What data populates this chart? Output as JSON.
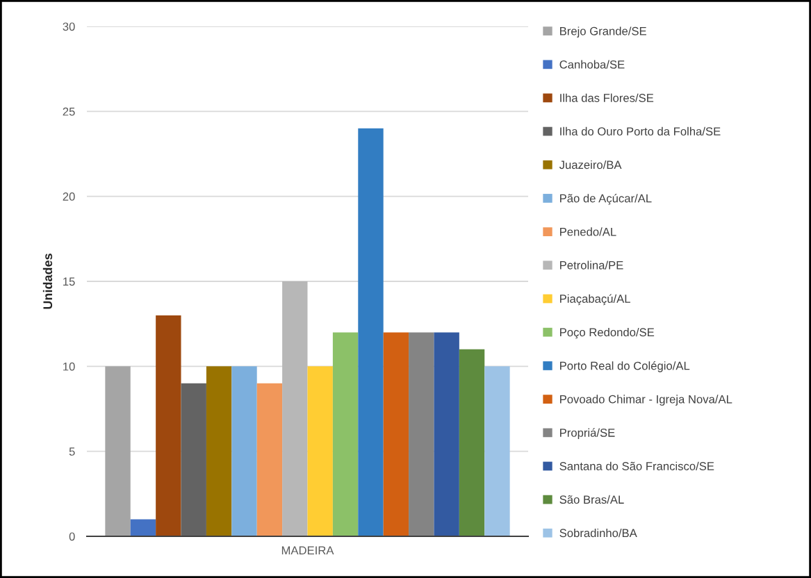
{
  "chart_data": {
    "type": "bar",
    "ylabel": "Unidades",
    "categories": [
      "MADEIRA"
    ],
    "ylim": [
      0,
      30
    ],
    "yticks": [
      0,
      5,
      10,
      15,
      20,
      25,
      30
    ],
    "grid": "y",
    "legend": "right",
    "series": [
      {
        "name": "Brejo Grande/SE",
        "color": "#a5a5a5",
        "values": [
          10
        ]
      },
      {
        "name": "Canhoba/SE",
        "color": "#4472c4",
        "values": [
          1
        ]
      },
      {
        "name": "Ilha das Flores/SE",
        "color": "#9e480e",
        "values": [
          13
        ]
      },
      {
        "name": "Ilha do Ouro Porto da Folha/SE",
        "color": "#636363",
        "values": [
          9
        ]
      },
      {
        "name": "Juazeiro/BA",
        "color": "#997300",
        "values": [
          10
        ]
      },
      {
        "name": "Pão de Açúcar/AL",
        "color": "#7cafdd",
        "values": [
          10
        ]
      },
      {
        "name": "Penedo/AL",
        "color": "#f1975a",
        "values": [
          9
        ]
      },
      {
        "name": "Petrolina/PE",
        "color": "#b7b7b7",
        "values": [
          15
        ]
      },
      {
        "name": "Piaçabaçú/AL",
        "color": "#ffcd33",
        "values": [
          10
        ]
      },
      {
        "name": "Poço Redondo/SE",
        "color": "#8cc168",
        "values": [
          12
        ]
      },
      {
        "name": "Porto Real do Colégio/AL",
        "color": "#327dc2",
        "values": [
          24
        ]
      },
      {
        "name": "Povoado Chimar - Igreja Nova/AL",
        "color": "#d26012",
        "values": [
          12
        ]
      },
      {
        "name": "Propriá/SE",
        "color": "#848484",
        "values": [
          12
        ]
      },
      {
        "name": "Santana do São Francisco/SE",
        "color": "#335aa1",
        "values": [
          12
        ]
      },
      {
        "name": "São Bras/AL",
        "color": "#5e8b3e",
        "values": [
          11
        ]
      },
      {
        "name": "Sobradinho/BA",
        "color": "#9dc3e6",
        "values": [
          10
        ]
      }
    ]
  }
}
